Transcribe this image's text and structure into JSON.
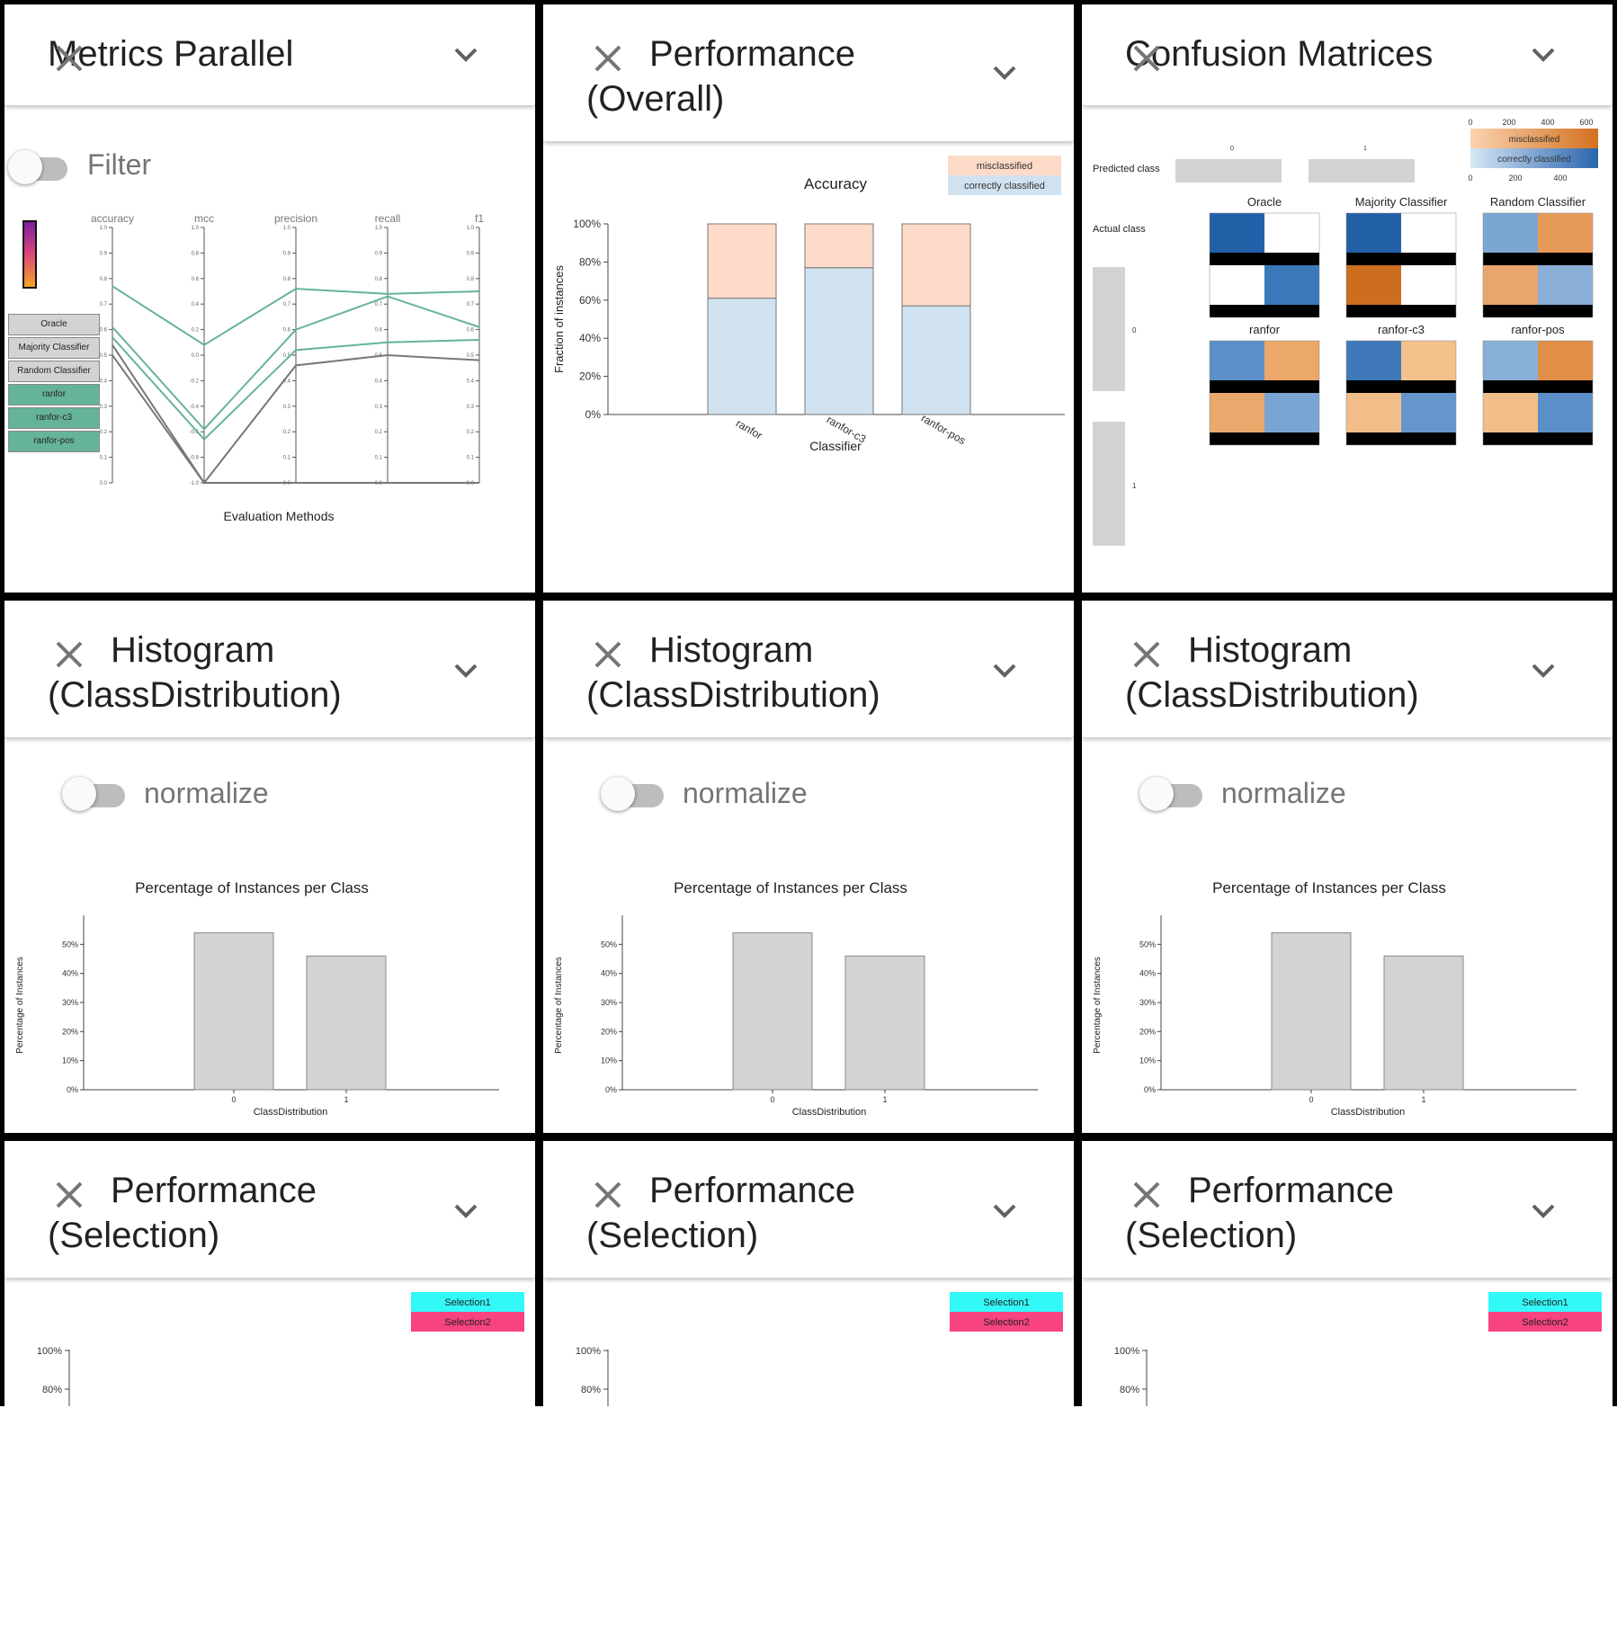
{
  "panels": {
    "metrics_parallel": {
      "title": "Metrics Parallel",
      "filter_label": "Filter",
      "axes": [
        "accuracy",
        "mcc",
        "precision",
        "recall",
        "f1"
      ],
      "axis_ticks": {
        "accuracy": [
          "1.0",
          "0.9",
          "0.8",
          "0.7",
          "0.6",
          "0.5",
          "0.4",
          "0.3",
          "0.2",
          "0.1",
          "0.0"
        ],
        "mcc": [
          "1.0",
          "0.8",
          "0.6",
          "0.4",
          "0.2",
          "0.0",
          "-0.2",
          "-0.4",
          "-0.6",
          "-0.8",
          "-1.0"
        ],
        "precision": [
          "1.0",
          "0.9",
          "0.8",
          "0.7",
          "0.6",
          "0.5",
          "0.4",
          "0.3",
          "0.2",
          "0.1",
          "0.0"
        ],
        "recall": [
          "1.0",
          "0.9",
          "0.8",
          "0.7",
          "0.6",
          "0.5",
          "0.4",
          "0.3",
          "0.2",
          "0.1",
          "0.0"
        ],
        "f1": [
          "1.0",
          "0.9",
          "0.8",
          "0.7",
          "0.6",
          "0.5",
          "0.4",
          "0.3",
          "0.2",
          "0.1",
          "0.0"
        ]
      },
      "xlabel": "Evaluation Methods",
      "legend": [
        {
          "label": "Oracle",
          "color": "#d3d3d3"
        },
        {
          "label": "Majority Classifier",
          "color": "#d3d3d3"
        },
        {
          "label": "Random Classifier",
          "color": "#d3d3d3"
        },
        {
          "label": "ranfor",
          "color": "#66b39c"
        },
        {
          "label": "ranfor-c3",
          "color": "#66b39c"
        },
        {
          "label": "ranfor-pos",
          "color": "#66b39c"
        }
      ],
      "colorscale_colors": [
        "#7a1fa2",
        "#e0457b",
        "#f5a623"
      ],
      "lines": [
        {
          "color": "#66b39c",
          "values": [
            0.77,
            0.54,
            0.76,
            0.74,
            0.75
          ]
        },
        {
          "color": "#66b39c",
          "values": [
            0.61,
            0.21,
            0.6,
            0.73,
            0.61
          ]
        },
        {
          "color": "#66b39c",
          "values": [
            0.57,
            0.17,
            0.52,
            0.55,
            0.56
          ]
        },
        {
          "color": "#777777",
          "values": [
            0.54,
            0.0,
            0.46,
            0.5,
            0.48
          ]
        },
        {
          "color": "#777777",
          "values": [
            0.5,
            0.0,
            0.0,
            0.0,
            0.0
          ]
        }
      ]
    },
    "performance_overall": {
      "title": "Performance (Overall)",
      "chart_data": {
        "type": "bar",
        "title": "Accuracy",
        "xlabel": "Classifier",
        "ylabel": "Fraction of instances",
        "categories": [
          "ranfor",
          "ranfor-c3",
          "ranfor-pos"
        ],
        "series": [
          {
            "name": "correctly classified",
            "color": "#d0e2ef",
            "values": [
              0.61,
              0.77,
              0.57
            ]
          },
          {
            "name": "misclassified",
            "color": "#fddbc8",
            "values": [
              0.39,
              0.23,
              0.43
            ]
          }
        ],
        "ylim": [
          0,
          1
        ],
        "yticks": [
          "0%",
          "20%",
          "40%",
          "60%",
          "80%",
          "100%"
        ],
        "legend": "top-right"
      }
    },
    "confusion_matrices": {
      "title": "Confusion Matrices",
      "predicted_label": "Predicted class",
      "actual_label": "Actual class",
      "predicted_ticks": [
        "0",
        "1"
      ],
      "actual_ticks": [
        "0",
        "1"
      ],
      "legend": {
        "misclassified": "misclassified",
        "correct": "correctly classified",
        "top_ticks": [
          "0",
          "200",
          "400",
          "600"
        ],
        "bottom_ticks": [
          "0",
          "200",
          "400"
        ]
      },
      "matrices": [
        {
          "name": "Oracle",
          "cells": [
            "#2261a8",
            "#ffffff",
            "#ffffff",
            "#3a78b9"
          ]
        },
        {
          "name": "Majority Classifier",
          "cells": [
            "#2261a8",
            "#ffffff",
            "#cd6d1f",
            "#ffffff"
          ]
        },
        {
          "name": "Random Classifier",
          "cells": [
            "#7ba6d2",
            "#e59a57",
            "#e9a66c",
            "#89afd7"
          ]
        },
        {
          "name": "ranfor",
          "cells": [
            "#5d90c8",
            "#eba868",
            "#eaa86c",
            "#7aa5d2"
          ]
        },
        {
          "name": "ranfor-c3",
          "cells": [
            "#3f79b9",
            "#f2c18c",
            "#f1bd88",
            "#6496cb"
          ]
        },
        {
          "name": "ranfor-pos",
          "cells": [
            "#88afd7",
            "#e08e48",
            "#f1bd89",
            "#5c8fc7"
          ]
        }
      ]
    },
    "histograms": [
      {
        "title": "Histogram (ClassDistribution)",
        "toggle_label": "normalize"
      },
      {
        "title": "Histogram (ClassDistribution)",
        "toggle_label": "normalize"
      },
      {
        "title": "Histogram (ClassDistribution)",
        "toggle_label": "normalize"
      }
    ],
    "histogram_chart": {
      "chart_data": {
        "type": "bar",
        "title": "Percentage of Instances per Class",
        "xlabel": "ClassDistribution",
        "ylabel": "Percentage of Instances",
        "categories": [
          "0",
          "1"
        ],
        "values": [
          0.54,
          0.46
        ],
        "ylim": [
          0,
          0.6
        ],
        "yticks": [
          "0%",
          "10%",
          "20%",
          "30%",
          "40%",
          "50%"
        ]
      }
    },
    "selections": [
      {
        "title": "Performance (Selection)"
      },
      {
        "title": "Performance (Selection)"
      },
      {
        "title": "Performance (Selection)"
      }
    ],
    "selection_chart": {
      "legend": [
        {
          "label": "Selection1",
          "color": "#33f8f8"
        },
        {
          "label": "Selection2",
          "color": "#f7437f"
        }
      ],
      "yticks": [
        "100%",
        "80%"
      ]
    }
  }
}
